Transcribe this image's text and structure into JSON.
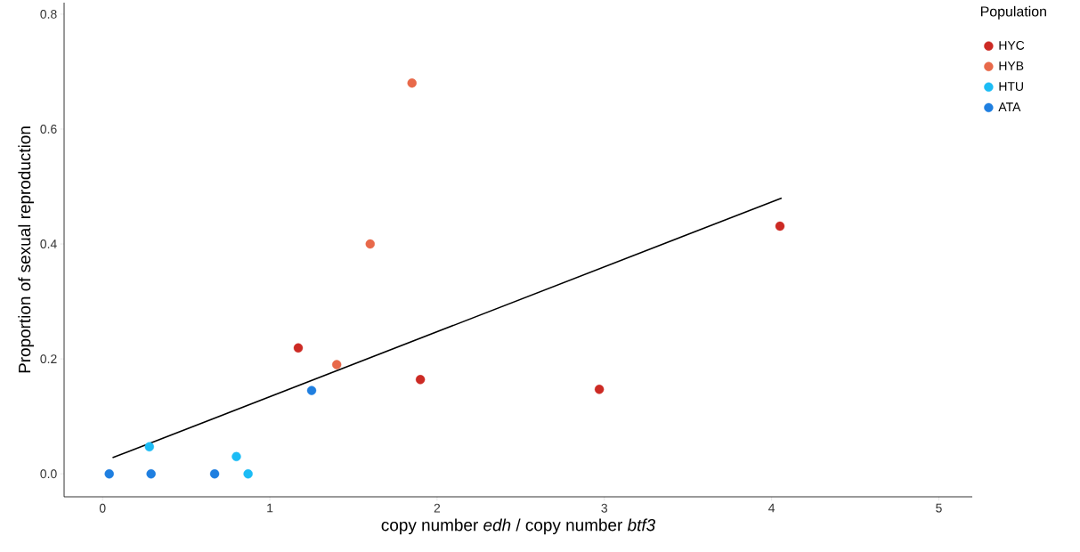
{
  "chart_data": {
    "type": "scatter",
    "xlabel": "copy number *edh* / copy number *btf3*",
    "ylabel": "Proportion of sexual reproduction",
    "legend_title": "Population",
    "legend": "right",
    "xlim": [
      -0.23,
      5.2
    ],
    "ylim": [
      -0.04,
      0.82
    ],
    "xticks": [
      0,
      1,
      2,
      3,
      4,
      5
    ],
    "yticks": [
      {
        "value": 0,
        "label": "0.0"
      },
      {
        "value": 0.2,
        "label": "0.2"
      },
      {
        "value": 0.4,
        "label": "0.4"
      },
      {
        "value": 0.6,
        "label": "0.6"
      },
      {
        "value": 0.8,
        "label": "0.8"
      }
    ],
    "series": [
      {
        "name": "HYC",
        "marker": "circle",
        "color": "#cc2a24",
        "x": [
          1.17,
          1.9,
          2.97,
          4.05
        ],
        "values": [
          0.219,
          0.164,
          0.147,
          0.431
        ]
      },
      {
        "name": "HYB",
        "marker": "circle",
        "color": "#e8694a",
        "x": [
          1.85,
          1.6,
          1.4
        ],
        "values": [
          0.68,
          0.4,
          0.19
        ]
      },
      {
        "name": "HTU",
        "marker": "circle",
        "color": "#1cbcf5",
        "x": [
          0.28,
          0.8,
          0.87
        ],
        "values": [
          0.047,
          0.03,
          0.0
        ]
      },
      {
        "name": "ATA",
        "marker": "circle",
        "color": "#1f7fe0",
        "x": [
          0.04,
          0.29,
          0.67,
          1.25
        ],
        "values": [
          0.0,
          0.0,
          0.0,
          0.145
        ]
      },
      {
        "type": "line",
        "marker": "none",
        "color": "#000000",
        "x": [
          0.06,
          4.06
        ],
        "values": [
          0.028,
          0.48
        ]
      }
    ]
  }
}
